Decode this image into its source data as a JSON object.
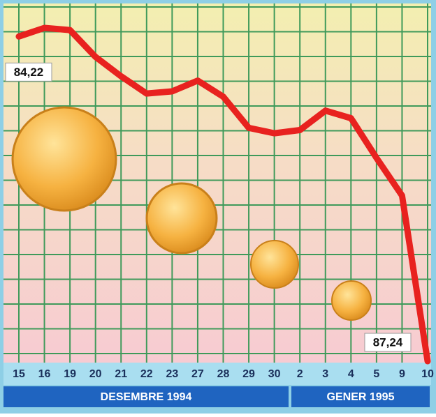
{
  "chart_data": {
    "type": "line",
    "categories": [
      "15",
      "16",
      "19",
      "20",
      "21",
      "22",
      "23",
      "27",
      "28",
      "29",
      "30",
      "2",
      "3",
      "4",
      "5",
      "9",
      "10"
    ],
    "groups": [
      "DESEMBRE 1994",
      "GENER 1995"
    ],
    "values": [
      84.22,
      84.14,
      84.16,
      84.41,
      84.59,
      84.75,
      84.73,
      84.63,
      84.78,
      85.07,
      85.12,
      85.09,
      84.91,
      84.98,
      85.35,
      85.7,
      87.24
    ],
    "value_labels": [
      "84,22",
      null,
      null,
      null,
      null,
      null,
      null,
      null,
      null,
      null,
      null,
      null,
      null,
      null,
      null,
      null,
      "87,24"
    ],
    "color": "#e8221f",
    "y_reversed": true,
    "grid": true
  }
}
